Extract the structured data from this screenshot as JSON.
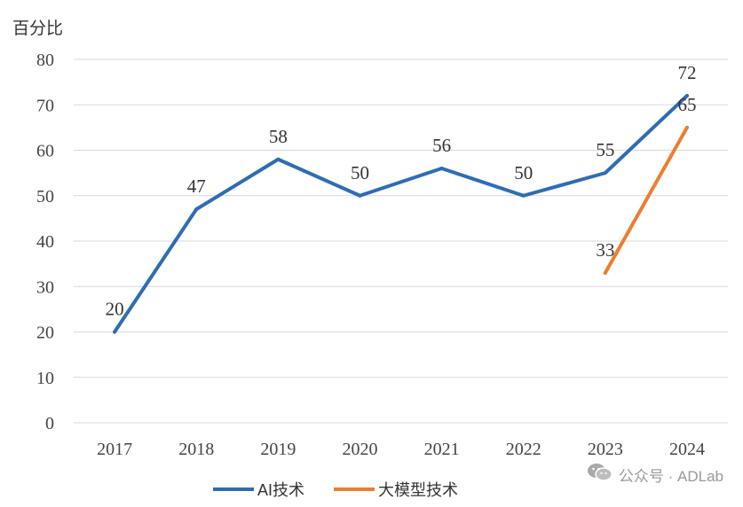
{
  "chart_data": {
    "type": "line",
    "ylabel": "百分比",
    "categories": [
      "2017",
      "2018",
      "2019",
      "2020",
      "2021",
      "2022",
      "2023",
      "2024"
    ],
    "ylim": [
      0,
      80
    ],
    "yticks": [
      "0",
      "10",
      "20",
      "30",
      "40",
      "50",
      "60",
      "70",
      "80"
    ],
    "grid": true,
    "legend_position": "bottom",
    "series": [
      {
        "name": "AI技术",
        "color": "#2E6DB4",
        "values": [
          20,
          47,
          58,
          50,
          56,
          50,
          55,
          72
        ]
      },
      {
        "name": "大模型技术",
        "color": "#ED7D31",
        "values": [
          null,
          null,
          null,
          null,
          null,
          null,
          33,
          65
        ]
      }
    ]
  },
  "watermark": {
    "text": "公众号 · ADLab",
    "icon": "wechat-icon"
  }
}
